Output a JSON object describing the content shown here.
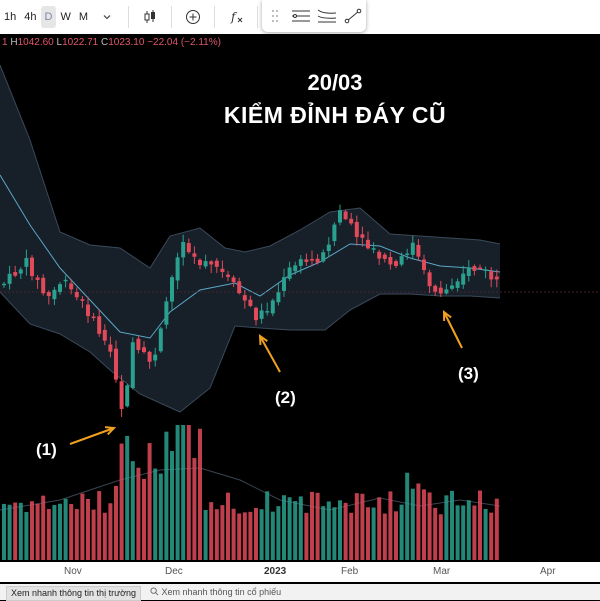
{
  "toolbar": {
    "timeframes": [
      "1h",
      "4h",
      "D",
      "W",
      "M"
    ],
    "selected_timeframe": "D"
  },
  "ohlc": {
    "h_label": "H",
    "h_value": "1042.60",
    "l_label": "L",
    "l_value": "1022.71",
    "c_label": "C",
    "c_value": "1023.10",
    "change": "−22.04 (−2.11%)"
  },
  "annotations": {
    "title_line1": "20/03",
    "title_line2": "KIỂM ĐỈNH ĐÁY CŨ",
    "callout_1": "(1)",
    "callout_2": "(2)",
    "callout_3": "(3)"
  },
  "x_axis": {
    "labels": [
      "Nov",
      "Dec",
      "2023",
      "Feb",
      "Mar",
      "Apr"
    ]
  },
  "bottom_tabs": {
    "market_overview": "Xem nhanh thông tin thị trường",
    "stock_search": "Xem nhanh thông tin cổ phiếu"
  },
  "colors": {
    "bull": "#2aa08e",
    "bear": "#e04a5a",
    "band": "#5aa8c8",
    "arrow": "#f0a020"
  },
  "chart_data": {
    "type": "candlestick",
    "x_labels": [
      "Nov",
      "Dec",
      "2023",
      "Feb",
      "Mar",
      "Apr"
    ],
    "highlight_points": [
      "(1)",
      "(2)",
      "(3)"
    ],
    "last_bar": {
      "high": 1042.6,
      "low": 1022.71,
      "close": 1023.1,
      "change": -22.04,
      "change_pct": -2.11
    }
  }
}
